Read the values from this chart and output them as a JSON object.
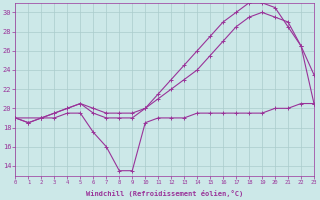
{
  "bg_color": "#cce8e8",
  "grid_color": "#aacccc",
  "line_color": "#993399",
  "line1_x": [
    0,
    1,
    2,
    3,
    4,
    5,
    6,
    7,
    8,
    9,
    10,
    11,
    12,
    13,
    14,
    15,
    16,
    17,
    18,
    19,
    20,
    21,
    22,
    23
  ],
  "line1_y": [
    19,
    18.5,
    19,
    19,
    19.5,
    19.5,
    17.5,
    16,
    13.5,
    13.5,
    18.5,
    19,
    19,
    19,
    19.5,
    19.5,
    19.5,
    19.5,
    19.5,
    19.5,
    20,
    20,
    20.5,
    20.5
  ],
  "line2_x": [
    0,
    2,
    3,
    4,
    5,
    6,
    7,
    8,
    9,
    10,
    11,
    12,
    13,
    14,
    15,
    16,
    17,
    18,
    19,
    20,
    21,
    22,
    23
  ],
  "line2_y": [
    19,
    19,
    19.5,
    20,
    20.5,
    20,
    19.5,
    19.5,
    19.5,
    20,
    21,
    22,
    23,
    24,
    25.5,
    27,
    28.5,
    29.5,
    30,
    29.5,
    29,
    26.5,
    23.5
  ],
  "line3_x": [
    0,
    1,
    2,
    3,
    4,
    5,
    6,
    7,
    8,
    9,
    10,
    11,
    12,
    13,
    14,
    15,
    16,
    17,
    18,
    19,
    20,
    21,
    22,
    23
  ],
  "line3_y": [
    19,
    18.5,
    19,
    19.5,
    20,
    20.5,
    19.5,
    19,
    19,
    19,
    20,
    21.5,
    23,
    24.5,
    26,
    27.5,
    29,
    30,
    31,
    31,
    30.5,
    28.5,
    26.5,
    20.5
  ],
  "xlim_min": 0,
  "xlim_max": 23,
  "ylim_min": 13,
  "ylim_max": 31,
  "yticks": [
    14,
    16,
    18,
    20,
    22,
    24,
    26,
    28,
    30
  ],
  "xticks": [
    0,
    1,
    2,
    3,
    4,
    5,
    6,
    7,
    8,
    9,
    10,
    11,
    12,
    13,
    14,
    15,
    16,
    17,
    18,
    19,
    20,
    21,
    22,
    23
  ],
  "xlabel": "Windchill (Refroidissement éolien,°C)"
}
